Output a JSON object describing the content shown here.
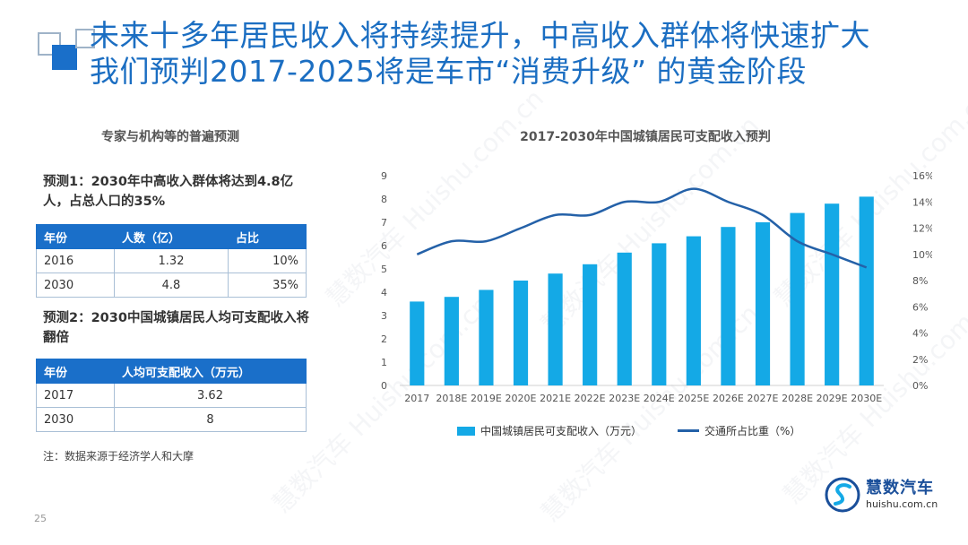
{
  "title": {
    "line1": "未来十多年居民收入将持续提升，中高收入群体将快速扩大",
    "line2": "我们预判2017-2025将是车市“消费升级” 的黄金阶段"
  },
  "left_panel": {
    "heading": "专家与机构等的普遍预测",
    "prediction1": "预测1：2030年中高收入群体将达到4.8亿人，占总人口的35%",
    "table1": {
      "headers": [
        "年份",
        "人数（亿）",
        "占比"
      ],
      "rows": [
        [
          "2016",
          "1.32",
          "10%"
        ],
        [
          "2030",
          "4.8",
          "35%"
        ]
      ]
    },
    "prediction2": "预测2：2030中国城镇居民人均可支配收入将翻倍",
    "table2": {
      "headers": [
        "年份",
        "人均可支配收入（万元）"
      ],
      "rows": [
        [
          "2017",
          "3.62"
        ],
        [
          "2030",
          "8"
        ]
      ]
    },
    "note": "注：数据来源于经济学人和大摩"
  },
  "page_number": "25",
  "logo": {
    "name": "慧数汽车",
    "url": "huishu.com.cn"
  },
  "watermark": {
    "text": "慧数汽车 Huishu.com.cn"
  },
  "colors": {
    "title": "#1b6ec2",
    "bar": "#14a9e6",
    "line": "#2461a8",
    "table_header": "#1a6fc9"
  },
  "chart_data": {
    "type": "bar",
    "title": "2017-2030年中国城镇居民可支配收入预判",
    "categories": [
      "2017",
      "2018E",
      "2019E",
      "2020E",
      "2021E",
      "2022E",
      "2023E",
      "2024E",
      "2025E",
      "2026E",
      "2027E",
      "2028E",
      "2029E",
      "2030E"
    ],
    "series": [
      {
        "name": "中国城镇居民可支配收入（万元）",
        "type": "bar",
        "axis": "left",
        "values": [
          3.6,
          3.8,
          4.1,
          4.5,
          4.8,
          5.2,
          5.7,
          6.1,
          6.4,
          6.8,
          7.0,
          7.4,
          7.8,
          8.1
        ]
      },
      {
        "name": "交通所占比重（%）",
        "type": "line",
        "axis": "right",
        "values": [
          10.0,
          11.0,
          11.0,
          12.0,
          13.0,
          13.0,
          14.0,
          14.0,
          15.0,
          14.0,
          13.0,
          11.0,
          10.0,
          9.0
        ]
      }
    ],
    "y_left": {
      "min": 0,
      "max": 9,
      "ticks": [
        "0",
        "1",
        "2",
        "3",
        "4",
        "5",
        "6",
        "7",
        "8",
        "9"
      ]
    },
    "y_right": {
      "min": 0,
      "max": 16,
      "ticks": [
        "0%",
        "2%",
        "4%",
        "6%",
        "8%",
        "10%",
        "12%",
        "14%",
        "16%"
      ]
    },
    "grid": false,
    "legend": "bottom"
  }
}
